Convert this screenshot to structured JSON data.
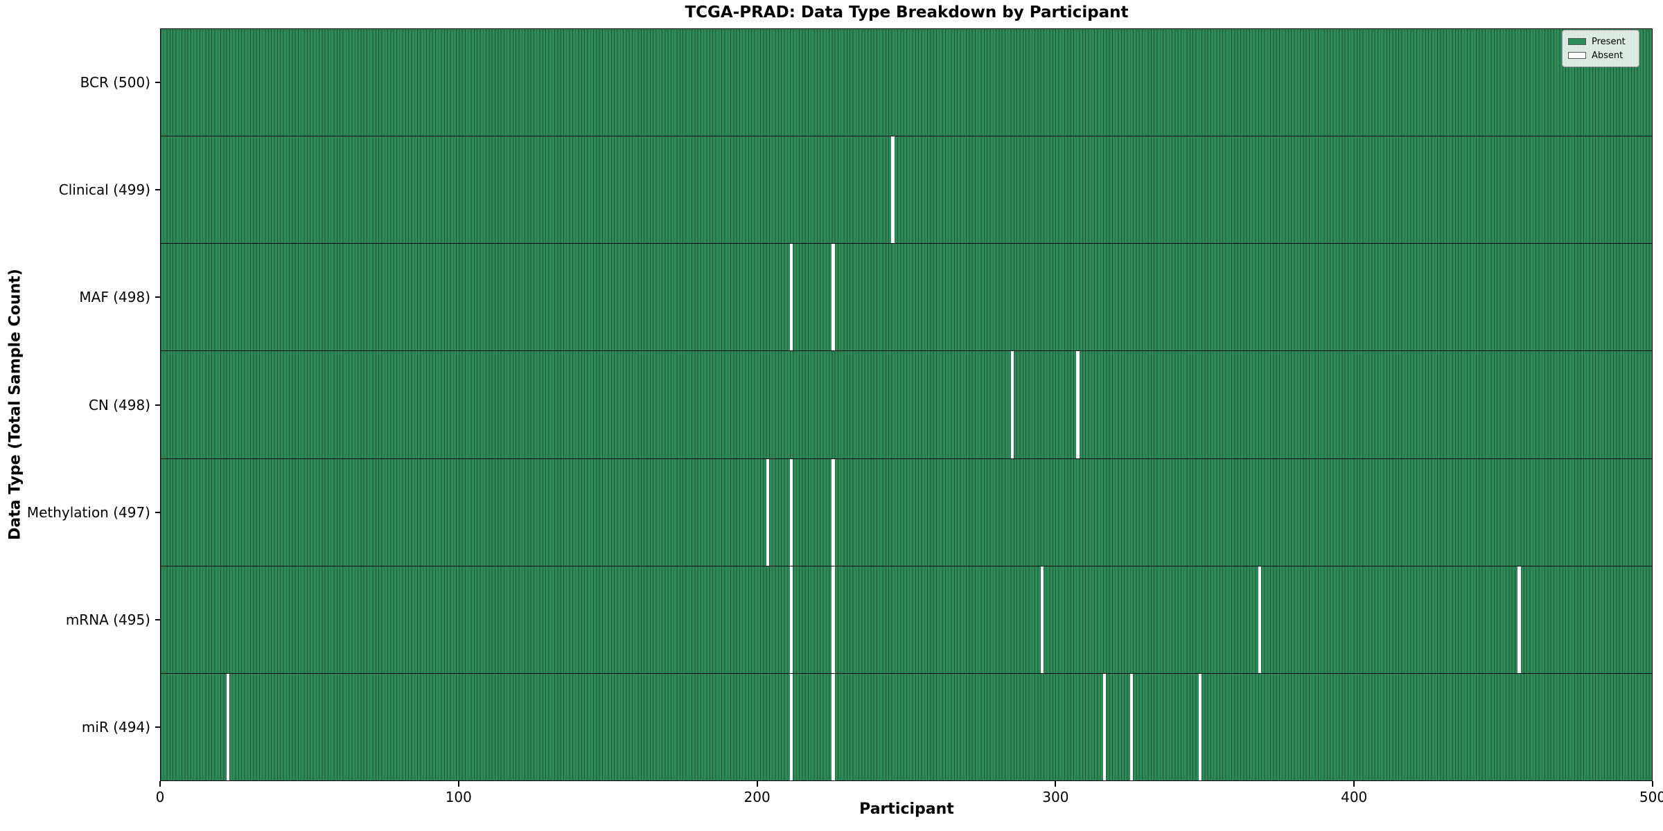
{
  "title": "TCGA-PRAD: Data Type Breakdown by Participant",
  "x_axis": {
    "label": "Participant",
    "ticks": [
      0,
      100,
      200,
      300,
      400,
      500
    ],
    "min": 0,
    "max": 500
  },
  "y_axis": {
    "label": "Data Type (Total Sample Count)"
  },
  "legend": {
    "items": [
      {
        "label": "Present",
        "color": "#2e8b57"
      },
      {
        "label": "Absent",
        "color": "#ffffff"
      }
    ]
  },
  "colors": {
    "present": "#2e8b57",
    "cell_edge": "#1e5637",
    "absent": "#ffffff",
    "row_divider": "#0a0a0a",
    "plot_border": "#000000"
  },
  "chart_data": {
    "type": "heatmap",
    "title": "TCGA-PRAD: Data Type Breakdown by Participant",
    "xlabel": "Participant",
    "ylabel": "Data Type (Total Sample Count)",
    "x_range": [
      0,
      500
    ],
    "n_participants": 500,
    "grid": false,
    "legend_position": "upper right",
    "legend": [
      "Present",
      "Absent"
    ],
    "rows": [
      {
        "label": "BCR (500)",
        "data_type": "BCR",
        "present_count": 500,
        "absent_participants": []
      },
      {
        "label": "Clinical (499)",
        "data_type": "Clinical",
        "present_count": 499,
        "absent_participants": [
          245
        ]
      },
      {
        "label": "MAF (498)",
        "data_type": "MAF",
        "present_count": 498,
        "absent_participants": [
          211,
          225
        ]
      },
      {
        "label": "CN (498)",
        "data_type": "CN",
        "present_count": 498,
        "absent_participants": [
          285,
          307
        ]
      },
      {
        "label": "Methylation (497)",
        "data_type": "Methylation",
        "present_count": 497,
        "absent_participants": [
          203,
          211,
          225
        ]
      },
      {
        "label": "mRNA (495)",
        "data_type": "mRNA",
        "present_count": 495,
        "absent_participants": [
          211,
          225,
          295,
          368,
          455
        ]
      },
      {
        "label": "miR (494)",
        "data_type": "miR",
        "present_count": 494,
        "absent_participants": [
          22,
          211,
          225,
          316,
          325,
          348
        ]
      }
    ]
  }
}
